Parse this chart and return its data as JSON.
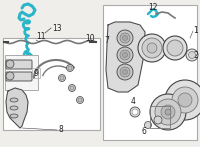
{
  "bg_color": "#f0eeeb",
  "part_color_teal": "#2ab5c8",
  "part_color_dark": "#444444",
  "part_color_gray": "#777777",
  "part_color_light": "#cccccc",
  "part_color_mid": "#aaaaaa",
  "label_color": "#222222",
  "line_color": "#555555",
  "white": "#ffffff",
  "label_fs": 5.5
}
